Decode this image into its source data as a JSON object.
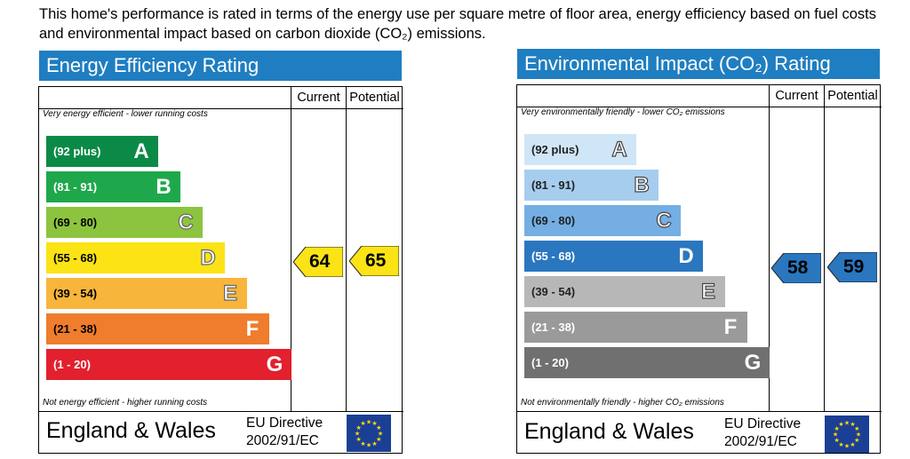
{
  "intro_text": "This home's performance is rated in terms of the energy use per square metre of floor area, energy efficiency based on fuel costs and environmental impact based on carbon dioxide (CO₂) emissions.",
  "colors": {
    "title_bar": "#1f7ec1",
    "energy_bands": [
      "#0b8a47",
      "#1fa84b",
      "#8cc43f",
      "#fbe316",
      "#f8b53b",
      "#ef7d2d",
      "#e2202e"
    ],
    "env_bands": [
      "#cfe6f7",
      "#a6cdee",
      "#74aee3",
      "#2a77c0",
      "#b7b7b7",
      "#9a9a9a",
      "#707070"
    ],
    "eu_flag": "#1b3f95",
    "eu_stars": "#ffdd00"
  },
  "chart_data": [
    {
      "type": "bar",
      "title": "Energy Efficiency Rating",
      "columns": [
        "Current",
        "Potential"
      ],
      "top_note": "Very energy efficient - lower running costs",
      "bottom_note": "Not energy efficient - higher running costs",
      "bands": [
        {
          "letter": "A",
          "range": "(92 plus)"
        },
        {
          "letter": "B",
          "range": "(81 - 91)"
        },
        {
          "letter": "C",
          "range": "(69 - 80)"
        },
        {
          "letter": "D",
          "range": "(55 - 68)"
        },
        {
          "letter": "E",
          "range": "(39 - 54)"
        },
        {
          "letter": "F",
          "range": "(21 - 38)"
        },
        {
          "letter": "G",
          "range": "(1 - 20)"
        }
      ],
      "current": 64,
      "potential": 65,
      "footer": {
        "region": "England & Wales",
        "directive_line1": "EU Directive",
        "directive_line2": "2002/91/EC"
      }
    },
    {
      "type": "bar",
      "title": "Environmental Impact (CO₂) Rating",
      "columns": [
        "Current",
        "Potential"
      ],
      "top_note": "Very environmentally friendly - lower CO₂ emissions",
      "bottom_note": "Not environmentally friendly - higher CO₂ emissions",
      "bands": [
        {
          "letter": "A",
          "range": "(92 plus)"
        },
        {
          "letter": "B",
          "range": "(81 - 91)"
        },
        {
          "letter": "C",
          "range": "(69 - 80)"
        },
        {
          "letter": "D",
          "range": "(55 - 68)"
        },
        {
          "letter": "E",
          "range": "(39 - 54)"
        },
        {
          "letter": "F",
          "range": "(21 - 38)"
        },
        {
          "letter": "G",
          "range": "(1 - 20)"
        }
      ],
      "current": 58,
      "potential": 59,
      "footer": {
        "region": "England & Wales",
        "directive_line1": "EU Directive",
        "directive_line2": "2002/91/EC"
      }
    }
  ]
}
